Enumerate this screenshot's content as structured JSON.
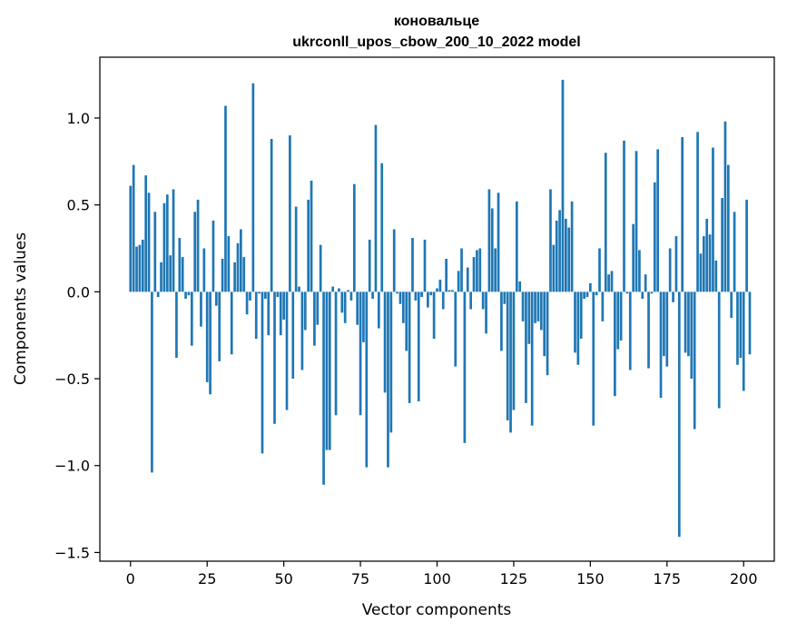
{
  "chart_data": {
    "type": "bar",
    "title": "коновальце",
    "subtitle": "ukrconll_upos_cbow_200_10_2022 model",
    "xlabel": "Vector components",
    "ylabel": "Components values",
    "xlim": [
      -10,
      210
    ],
    "ylim": [
      -1.55,
      1.35
    ],
    "xticks": [
      0,
      25,
      50,
      75,
      100,
      125,
      150,
      175,
      200
    ],
    "yticks": [
      -1.5,
      -1.0,
      -0.5,
      0.0,
      0.5,
      1.0
    ],
    "ytick_labels": [
      "−1.5",
      "−1.0",
      "−0.5",
      "0.0",
      "0.5",
      "1.0"
    ],
    "bar_color": "#1f77b4",
    "grid": false,
    "values": [
      0.61,
      0.73,
      0.26,
      0.27,
      0.3,
      0.67,
      0.57,
      -1.04,
      0.46,
      -0.03,
      0.17,
      0.51,
      0.56,
      0.21,
      0.59,
      -0.38,
      0.31,
      0.2,
      -0.04,
      -0.02,
      -0.31,
      0.46,
      0.53,
      -0.2,
      0.25,
      -0.52,
      -0.59,
      0.41,
      -0.08,
      -0.4,
      0.19,
      1.07,
      0.32,
      -0.36,
      0.17,
      0.28,
      0.36,
      0.2,
      -0.13,
      -0.05,
      1.2,
      -0.27,
      -0.01,
      -0.93,
      -0.04,
      -0.25,
      0.88,
      -0.76,
      -0.03,
      -0.25,
      -0.16,
      -0.68,
      0.9,
      -0.5,
      0.49,
      0.03,
      -0.45,
      -0.22,
      0.53,
      0.64,
      -0.31,
      -0.19,
      0.27,
      -1.11,
      -0.91,
      -0.91,
      0.03,
      -0.71,
      0.02,
      -0.12,
      -0.18,
      0.01,
      -0.05,
      0.62,
      -0.19,
      -0.71,
      -0.29,
      -1.01,
      0.3,
      -0.04,
      0.96,
      -0.21,
      0.74,
      -0.58,
      -1.01,
      -0.81,
      0.36,
      -0.01,
      -0.07,
      -0.18,
      -0.34,
      -0.64,
      0.31,
      -0.05,
      -0.63,
      -0.03,
      0.3,
      -0.09,
      -0.02,
      -0.27,
      0.02,
      0.07,
      -0.1,
      0.19,
      0.01,
      0.01,
      -0.43,
      0.12,
      0.25,
      -0.87,
      0.14,
      -0.1,
      0.2,
      0.24,
      0.25,
      -0.1,
      -0.24,
      0.59,
      0.48,
      0.25,
      0.57,
      -0.34,
      -0.07,
      -0.74,
      -0.81,
      -0.68,
      0.52,
      0.06,
      -0.17,
      -0.64,
      -0.3,
      -0.77,
      -0.18,
      -0.17,
      -0.22,
      -0.37,
      -0.48,
      0.59,
      0.27,
      0.41,
      0.47,
      1.22,
      0.42,
      0.37,
      0.52,
      -0.35,
      -0.42,
      -0.27,
      -0.04,
      -0.03,
      0.05,
      -0.77,
      -0.02,
      0.25,
      -0.17,
      0.8,
      0.1,
      0.12,
      -0.6,
      -0.33,
      -0.28,
      0.87,
      -0.01,
      -0.45,
      0.39,
      0.81,
      0.24,
      -0.04,
      0.1,
      -0.44,
      -0.01,
      0.63,
      0.82,
      -0.61,
      -0.37,
      -0.43,
      0.25,
      -0.06,
      0.32,
      -1.41,
      0.89,
      -0.35,
      -0.37,
      -0.5,
      -0.79,
      0.92,
      0.22,
      0.32,
      0.42,
      0.33,
      0.83,
      0.18,
      -0.67,
      0.54,
      0.98,
      0.73,
      -0.15,
      0.46,
      -0.42,
      -0.38,
      -0.57,
      0.53,
      -0.36
    ]
  }
}
